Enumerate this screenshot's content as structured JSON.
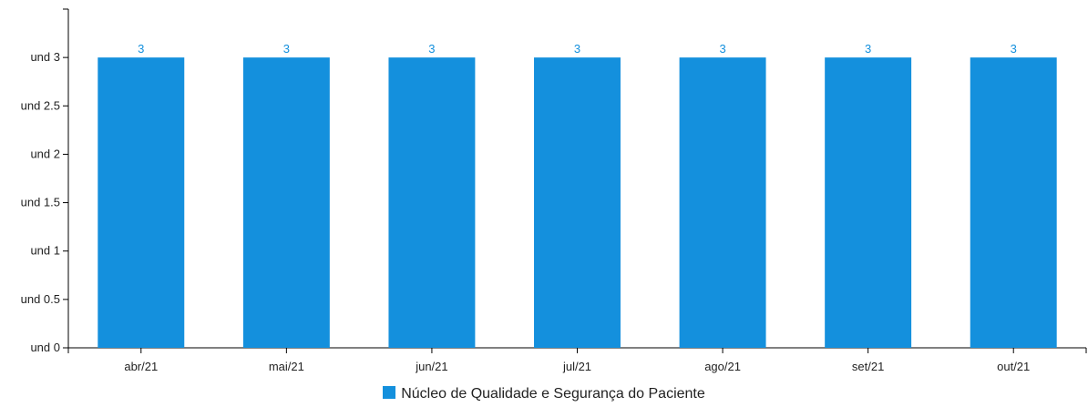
{
  "chart_data": {
    "type": "bar",
    "categories": [
      "abr/21",
      "mai/21",
      "jun/21",
      "jul/21",
      "ago/21",
      "set/21",
      "out/21"
    ],
    "series": [
      {
        "name": "Núcleo de Qualidade e Segurança do Paciente",
        "values": [
          3,
          3,
          3,
          3,
          3,
          3,
          3
        ],
        "color": "#1490dd"
      }
    ],
    "ylim": [
      0,
      3.5
    ],
    "yticks": [
      0,
      0.5,
      1,
      1.5,
      2,
      2.5,
      3
    ],
    "ytick_labels": [
      "und 0",
      "und 0.5",
      "und 1",
      "und 1.5",
      "und 2",
      "und 2.5",
      "und 3"
    ],
    "data_labels": [
      "3",
      "3",
      "3",
      "3",
      "3",
      "3",
      "3"
    ],
    "legend_position": "bottom-center",
    "grid": false
  }
}
